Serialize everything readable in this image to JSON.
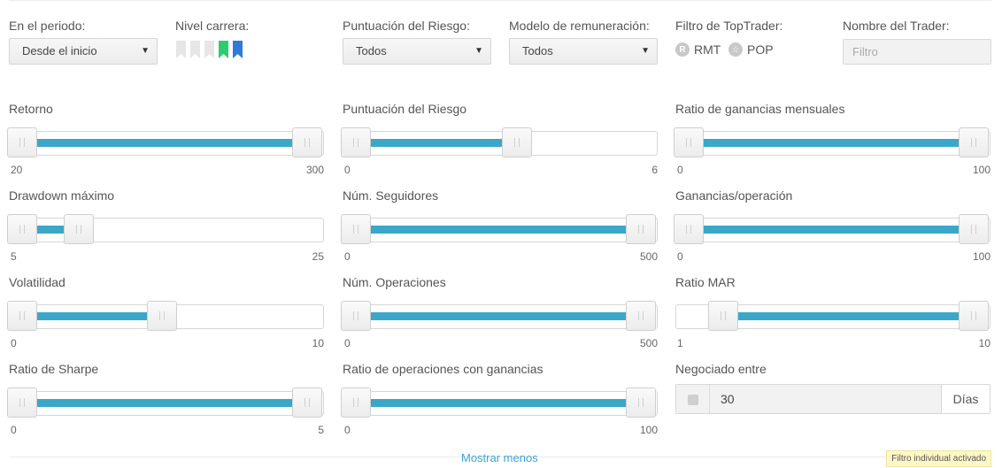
{
  "filters": {
    "period": {
      "label": "En el periodo:",
      "value": "Desde el inicio"
    },
    "career": {
      "label": "Nivel carrera:",
      "levels": [
        {
          "icon": "flag-level-1-icon",
          "color": "#e6e6e6"
        },
        {
          "icon": "flag-level-2-icon",
          "color": "#e6e6e6"
        },
        {
          "icon": "flag-level-3-icon",
          "color": "#e6e6e6"
        },
        {
          "icon": "flag-level-4-icon",
          "color": "#2ecc71"
        },
        {
          "icon": "flag-level-5-icon",
          "color": "#2e7bd8"
        }
      ]
    },
    "risk_score": {
      "label": "Puntuación del Riesgo:",
      "value": "Todos"
    },
    "remuneration": {
      "label": "Modelo de remuneración:",
      "value": "Todos"
    },
    "toptrader": {
      "label": "Filtro de TopTrader:",
      "options": [
        {
          "icon": "R",
          "label": "RMT"
        },
        {
          "icon": "☆",
          "label": "POP"
        }
      ]
    },
    "trader_name": {
      "label": "Nombre del Trader:",
      "placeholder": "Filtro"
    }
  },
  "sliders": [
    {
      "id": "retorno",
      "label": "Retorno",
      "min": "20",
      "max": "300",
      "range": [
        20,
        300
      ],
      "low": 20,
      "high": 300
    },
    {
      "id": "riesgo",
      "label": "Puntuación del Riesgo",
      "min": "0",
      "max": "6",
      "range": [
        0,
        6
      ],
      "low": 0,
      "high": 3.4
    },
    {
      "id": "ganancias-mensuales",
      "label": "Ratio de ganancias mensuales",
      "min": "0",
      "max": "100",
      "range": [
        0,
        100
      ],
      "low": 0,
      "high": 100
    },
    {
      "id": "drawdown",
      "label": "Drawdown máximo",
      "min": "5",
      "max": "25",
      "range": [
        5,
        25
      ],
      "low": 5,
      "high": 9
    },
    {
      "id": "seguidores",
      "label": "Núm. Seguidores",
      "min": "0",
      "max": "500",
      "range": [
        0,
        500
      ],
      "low": 0,
      "high": 500
    },
    {
      "id": "ganancias-operacion",
      "label": "Ganancias/operación",
      "min": "0",
      "max": "100",
      "range": [
        0,
        100
      ],
      "low": 0,
      "high": 100
    },
    {
      "id": "volatilidad",
      "label": "Volatilidad",
      "min": "0",
      "max": "10",
      "range": [
        0,
        10
      ],
      "low": 0,
      "high": 4.9
    },
    {
      "id": "operaciones",
      "label": "Núm. Operaciones",
      "min": "0",
      "max": "500",
      "range": [
        0,
        500
      ],
      "low": 0,
      "high": 500
    },
    {
      "id": "mar",
      "label": "Ratio MAR",
      "min": "1",
      "max": "10",
      "range": [
        1,
        10
      ],
      "low": 2.1,
      "high": 10
    },
    {
      "id": "sharpe",
      "label": "Ratio de Sharpe",
      "min": "0",
      "max": "5",
      "range": [
        0,
        5
      ],
      "low": 0,
      "high": 5
    },
    {
      "id": "operaciones-ganancias",
      "label": "Ratio de operaciones con ganancias",
      "min": "0",
      "max": "100",
      "range": [
        0,
        100
      ],
      "low": 0,
      "high": 100
    }
  ],
  "negotiated": {
    "label": "Negociado entre",
    "value": "30",
    "unit": "Días"
  },
  "footer": {
    "toggle_label": "Mostrar menos",
    "note": "Filtro individual activado"
  }
}
